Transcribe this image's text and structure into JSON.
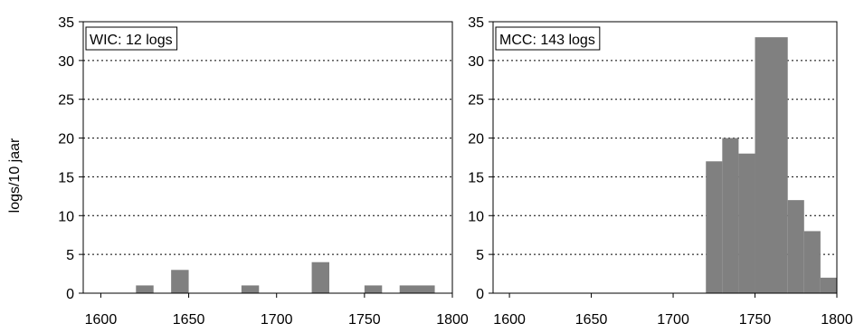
{
  "ylabel": "logs/10 jaar",
  "chart_data": [
    {
      "type": "bar",
      "annotation": "WIC: 12 logs",
      "xlim": [
        1590,
        1800
      ],
      "ylim": [
        0,
        35
      ],
      "xticks": [
        1600,
        1650,
        1700,
        1750,
        1800
      ],
      "yticks": [
        0,
        5,
        10,
        15,
        20,
        25,
        30,
        35
      ],
      "grid": "horizontal dotted",
      "bar_color": "#808080",
      "bins": [
        {
          "start": 1620,
          "end": 1630,
          "value": 1
        },
        {
          "start": 1640,
          "end": 1650,
          "value": 3
        },
        {
          "start": 1680,
          "end": 1690,
          "value": 1
        },
        {
          "start": 1720,
          "end": 1730,
          "value": 4
        },
        {
          "start": 1750,
          "end": 1760,
          "value": 1
        },
        {
          "start": 1770,
          "end": 1790,
          "value": 1
        }
      ]
    },
    {
      "type": "bar",
      "annotation": "MCC: 143 logs",
      "xlim": [
        1590,
        1800
      ],
      "ylim": [
        0,
        35
      ],
      "xticks": [
        1600,
        1650,
        1700,
        1750,
        1800
      ],
      "yticks": [
        0,
        5,
        10,
        15,
        20,
        25,
        30,
        35
      ],
      "grid": "horizontal dotted",
      "bar_color": "#808080",
      "bins": [
        {
          "start": 1720,
          "end": 1730,
          "value": 17
        },
        {
          "start": 1730,
          "end": 1740,
          "value": 20
        },
        {
          "start": 1740,
          "end": 1750,
          "value": 18
        },
        {
          "start": 1750,
          "end": 1770,
          "value": 33
        },
        {
          "start": 1770,
          "end": 1780,
          "value": 12
        },
        {
          "start": 1780,
          "end": 1790,
          "value": 8
        },
        {
          "start": 1790,
          "end": 1800,
          "value": 2
        }
      ]
    }
  ]
}
